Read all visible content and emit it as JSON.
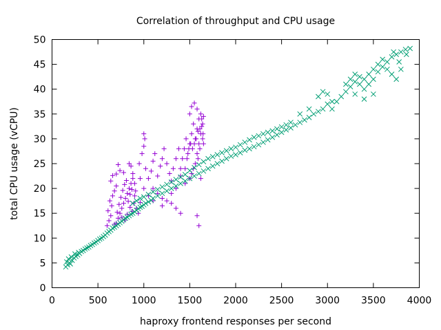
{
  "chart_data": {
    "type": "scatter",
    "title": "Correlation of throughput and CPU usage",
    "xlabel": "haproxy frontend responses per second",
    "ylabel": "total CPU usage (vCPU)",
    "xlim": [
      0,
      4000
    ],
    "ylim": [
      0,
      50
    ],
    "xticks": [
      0,
      500,
      1000,
      1500,
      2000,
      2500,
      3000,
      3500,
      4000
    ],
    "yticks": [
      0,
      5,
      10,
      15,
      20,
      25,
      30,
      35,
      40,
      45,
      50
    ],
    "grid": false,
    "legend": "none",
    "series": [
      {
        "name": "series-purple",
        "marker": "plus",
        "color": "#9400d3",
        "points": [
          [
            600,
            12.5
          ],
          [
            620,
            13.5
          ],
          [
            640,
            14.5
          ],
          [
            610,
            15.5
          ],
          [
            650,
            16.5
          ],
          [
            630,
            17.5
          ],
          [
            660,
            18.5
          ],
          [
            680,
            19.5
          ],
          [
            700,
            20.5
          ],
          [
            640,
            21.5
          ],
          [
            700,
            13
          ],
          [
            720,
            14
          ],
          [
            740,
            15
          ],
          [
            760,
            16
          ],
          [
            780,
            17
          ],
          [
            800,
            18
          ],
          [
            820,
            19
          ],
          [
            840,
            20
          ],
          [
            860,
            21
          ],
          [
            880,
            22
          ],
          [
            680,
            12.8
          ],
          [
            710,
            15.2
          ],
          [
            730,
            16.8
          ],
          [
            750,
            18.2
          ],
          [
            770,
            19.6
          ],
          [
            790,
            20.8
          ],
          [
            810,
            21.6
          ],
          [
            830,
            17.4
          ],
          [
            850,
            16.2
          ],
          [
            870,
            15.4
          ],
          [
            890,
            17
          ],
          [
            900,
            18.5
          ],
          [
            910,
            19.5
          ],
          [
            920,
            16
          ],
          [
            940,
            15
          ],
          [
            960,
            17.2
          ],
          [
            900,
            21
          ],
          [
            880,
            23
          ],
          [
            860,
            24.5
          ],
          [
            840,
            25
          ],
          [
            760,
            14.2
          ],
          [
            790,
            13.6
          ],
          [
            820,
            14.8
          ],
          [
            850,
            18.8
          ],
          [
            870,
            19.8
          ],
          [
            660,
            22.6
          ],
          [
            700,
            22.9
          ],
          [
            720,
            24.8
          ],
          [
            740,
            23.6
          ],
          [
            780,
            23.2
          ],
          [
            950,
            25
          ],
          [
            980,
            27
          ],
          [
            1000,
            28.5
          ],
          [
            1020,
            24
          ],
          [
            1050,
            22
          ],
          [
            1080,
            23.5
          ],
          [
            1100,
            25.5
          ],
          [
            1120,
            27
          ],
          [
            1000,
            31
          ],
          [
            1010,
            30
          ],
          [
            1150,
            22.5
          ],
          [
            1180,
            24.5
          ],
          [
            1200,
            26
          ],
          [
            1220,
            28
          ],
          [
            1250,
            25
          ],
          [
            1280,
            23
          ],
          [
            1300,
            21.5
          ],
          [
            1320,
            24
          ],
          [
            1350,
            26
          ],
          [
            1380,
            28
          ],
          [
            1100,
            20
          ],
          [
            1150,
            19
          ],
          [
            1200,
            18
          ],
          [
            1250,
            17.5
          ],
          [
            1300,
            17
          ],
          [
            1350,
            20
          ],
          [
            1400,
            22.5
          ],
          [
            1050,
            18.5
          ],
          [
            1000,
            20
          ],
          [
            960,
            22
          ],
          [
            1400,
            24
          ],
          [
            1420,
            26
          ],
          [
            1440,
            28
          ],
          [
            1460,
            30
          ],
          [
            1480,
            27
          ],
          [
            1500,
            29
          ],
          [
            1520,
            31
          ],
          [
            1540,
            33
          ],
          [
            1560,
            30
          ],
          [
            1580,
            32
          ],
          [
            1600,
            34
          ],
          [
            1620,
            35
          ],
          [
            1640,
            33
          ],
          [
            1600,
            29
          ],
          [
            1620,
            31
          ],
          [
            1640,
            30
          ],
          [
            1580,
            27
          ],
          [
            1560,
            25
          ],
          [
            1540,
            24
          ],
          [
            1520,
            23
          ],
          [
            1500,
            35
          ],
          [
            1520,
            36.5
          ],
          [
            1550,
            37.2
          ],
          [
            1580,
            36
          ],
          [
            1630,
            32.5
          ],
          [
            1650,
            29
          ],
          [
            1645,
            31
          ],
          [
            1610,
            28
          ],
          [
            1590,
            26
          ],
          [
            1650,
            34.5
          ],
          [
            1450,
            24
          ],
          [
            1470,
            26
          ],
          [
            1490,
            28
          ],
          [
            1510,
            29
          ],
          [
            1530,
            28
          ],
          [
            1550,
            29
          ],
          [
            1570,
            30
          ],
          [
            1610,
            32
          ],
          [
            1630,
            34
          ],
          [
            1590,
            31.5
          ],
          [
            1580,
            14.5
          ],
          [
            1600,
            12.5
          ],
          [
            1400,
            15
          ],
          [
            1350,
            16
          ],
          [
            1200,
            16.5
          ],
          [
            1100,
            17.5
          ],
          [
            1300,
            19
          ],
          [
            1500,
            22
          ],
          [
            1450,
            21
          ],
          [
            1620,
            22
          ]
        ]
      },
      {
        "name": "series-teal",
        "marker": "cross",
        "color": "#009e73",
        "points": [
          [
            150,
            4.2
          ],
          [
            170,
            4.6
          ],
          [
            190,
            5
          ],
          [
            160,
            5.2
          ],
          [
            200,
            4.8
          ],
          [
            220,
            5.5
          ],
          [
            240,
            6
          ],
          [
            260,
            6.3
          ],
          [
            280,
            6.6
          ],
          [
            300,
            6.9
          ],
          [
            180,
            5.8
          ],
          [
            210,
            6.2
          ],
          [
            250,
            6.8
          ],
          [
            290,
            7.1
          ],
          [
            320,
            7.3
          ],
          [
            340,
            7.5
          ],
          [
            360,
            7.8
          ],
          [
            380,
            8
          ],
          [
            400,
            8.2
          ],
          [
            420,
            8.5
          ],
          [
            440,
            8.7
          ],
          [
            460,
            9
          ],
          [
            480,
            9.2
          ],
          [
            500,
            9.5
          ],
          [
            520,
            9.8
          ],
          [
            540,
            10
          ],
          [
            560,
            10.3
          ],
          [
            580,
            10.6
          ],
          [
            600,
            11
          ],
          [
            620,
            11.3
          ],
          [
            640,
            11.6
          ],
          [
            660,
            12
          ],
          [
            680,
            12.2
          ],
          [
            700,
            12.5
          ],
          [
            720,
            12.8
          ],
          [
            740,
            13.1
          ],
          [
            760,
            13.4
          ],
          [
            780,
            13.7
          ],
          [
            800,
            14
          ],
          [
            820,
            14.2
          ],
          [
            840,
            14.5
          ],
          [
            860,
            14.8
          ],
          [
            880,
            15
          ],
          [
            900,
            15.3
          ],
          [
            920,
            15.6
          ],
          [
            940,
            15.9
          ],
          [
            960,
            16.2
          ],
          [
            980,
            16.4
          ],
          [
            1000,
            16.7
          ],
          [
            1020,
            17
          ],
          [
            1050,
            17.3
          ],
          [
            1080,
            17.6
          ],
          [
            1100,
            18
          ],
          [
            1150,
            18.5
          ],
          [
            1200,
            19
          ],
          [
            1250,
            19.5
          ],
          [
            1300,
            20
          ],
          [
            1350,
            20.5
          ],
          [
            1400,
            21
          ],
          [
            1450,
            21.5
          ],
          [
            1500,
            22
          ],
          [
            1550,
            22.5
          ],
          [
            1600,
            23
          ],
          [
            1650,
            23.5
          ],
          [
            1700,
            24
          ],
          [
            1750,
            24.5
          ],
          [
            1800,
            25
          ],
          [
            1850,
            25.5
          ],
          [
            1900,
            26
          ],
          [
            1950,
            26.5
          ],
          [
            880,
            17
          ],
          [
            920,
            17.5
          ],
          [
            960,
            18
          ],
          [
            1000,
            18.3
          ],
          [
            1050,
            18.8
          ],
          [
            1100,
            19.3
          ],
          [
            1150,
            19.8
          ],
          [
            1200,
            20.3
          ],
          [
            1250,
            20.8
          ],
          [
            1300,
            21.3
          ],
          [
            1350,
            21.8
          ],
          [
            1400,
            22.3
          ],
          [
            1450,
            22.8
          ],
          [
            1500,
            23.6
          ],
          [
            1550,
            24.2
          ],
          [
            1600,
            24.8
          ],
          [
            1650,
            25.4
          ],
          [
            1700,
            26
          ],
          [
            1750,
            26.4
          ],
          [
            1800,
            26.8
          ],
          [
            1850,
            27.2
          ],
          [
            1900,
            27.6
          ],
          [
            1950,
            28
          ],
          [
            2000,
            28.3
          ],
          [
            2050,
            28.8
          ],
          [
            2100,
            29.3
          ],
          [
            2150,
            29.8
          ],
          [
            2200,
            30.3
          ],
          [
            2000,
            26.8
          ],
          [
            2050,
            27.2
          ],
          [
            2100,
            27.7
          ],
          [
            2150,
            28
          ],
          [
            2200,
            28.4
          ],
          [
            2250,
            28.8
          ],
          [
            2300,
            29.3
          ],
          [
            2350,
            29.8
          ],
          [
            2400,
            30.3
          ],
          [
            2450,
            30.8
          ],
          [
            2500,
            31.3
          ],
          [
            2550,
            31.8
          ],
          [
            2600,
            32.2
          ],
          [
            2650,
            32.8
          ],
          [
            2700,
            33.3
          ],
          [
            2750,
            33.8
          ],
          [
            2800,
            34.3
          ],
          [
            2850,
            35
          ],
          [
            2900,
            35.5
          ],
          [
            2950,
            36
          ],
          [
            3000,
            37
          ],
          [
            3050,
            37.5
          ],
          [
            2250,
            30.6
          ],
          [
            2300,
            31
          ],
          [
            2350,
            31.3
          ],
          [
            2400,
            31.6
          ],
          [
            2450,
            32
          ],
          [
            2500,
            32.4
          ],
          [
            2550,
            32.8
          ],
          [
            2600,
            33.3
          ],
          [
            2700,
            35
          ],
          [
            2800,
            36
          ],
          [
            2900,
            38.5
          ],
          [
            2950,
            39.5
          ],
          [
            3000,
            39
          ],
          [
            3050,
            36
          ],
          [
            3100,
            37.5
          ],
          [
            3150,
            38.5
          ],
          [
            3200,
            39.5
          ],
          [
            3250,
            40.5
          ],
          [
            3300,
            41.5
          ],
          [
            3350,
            42.5
          ],
          [
            3200,
            41
          ],
          [
            3250,
            42
          ],
          [
            3300,
            43
          ],
          [
            3350,
            41
          ],
          [
            3400,
            42
          ],
          [
            3450,
            43
          ],
          [
            3500,
            44
          ],
          [
            3400,
            40
          ],
          [
            3450,
            41
          ],
          [
            3500,
            42
          ],
          [
            3550,
            43.5
          ],
          [
            3600,
            44.5
          ],
          [
            3650,
            45.5
          ],
          [
            3700,
            46.5
          ],
          [
            3750,
            47
          ],
          [
            3800,
            47.5
          ],
          [
            3850,
            48
          ],
          [
            3900,
            48.2
          ],
          [
            3550,
            45
          ],
          [
            3600,
            46
          ],
          [
            3650,
            44
          ],
          [
            3700,
            43
          ],
          [
            3750,
            42
          ],
          [
            3800,
            44
          ],
          [
            3780,
            45.5
          ],
          [
            3720,
            47.5
          ],
          [
            3860,
            47
          ],
          [
            3500,
            39
          ],
          [
            3400,
            38
          ],
          [
            3300,
            39
          ]
        ]
      }
    ]
  }
}
